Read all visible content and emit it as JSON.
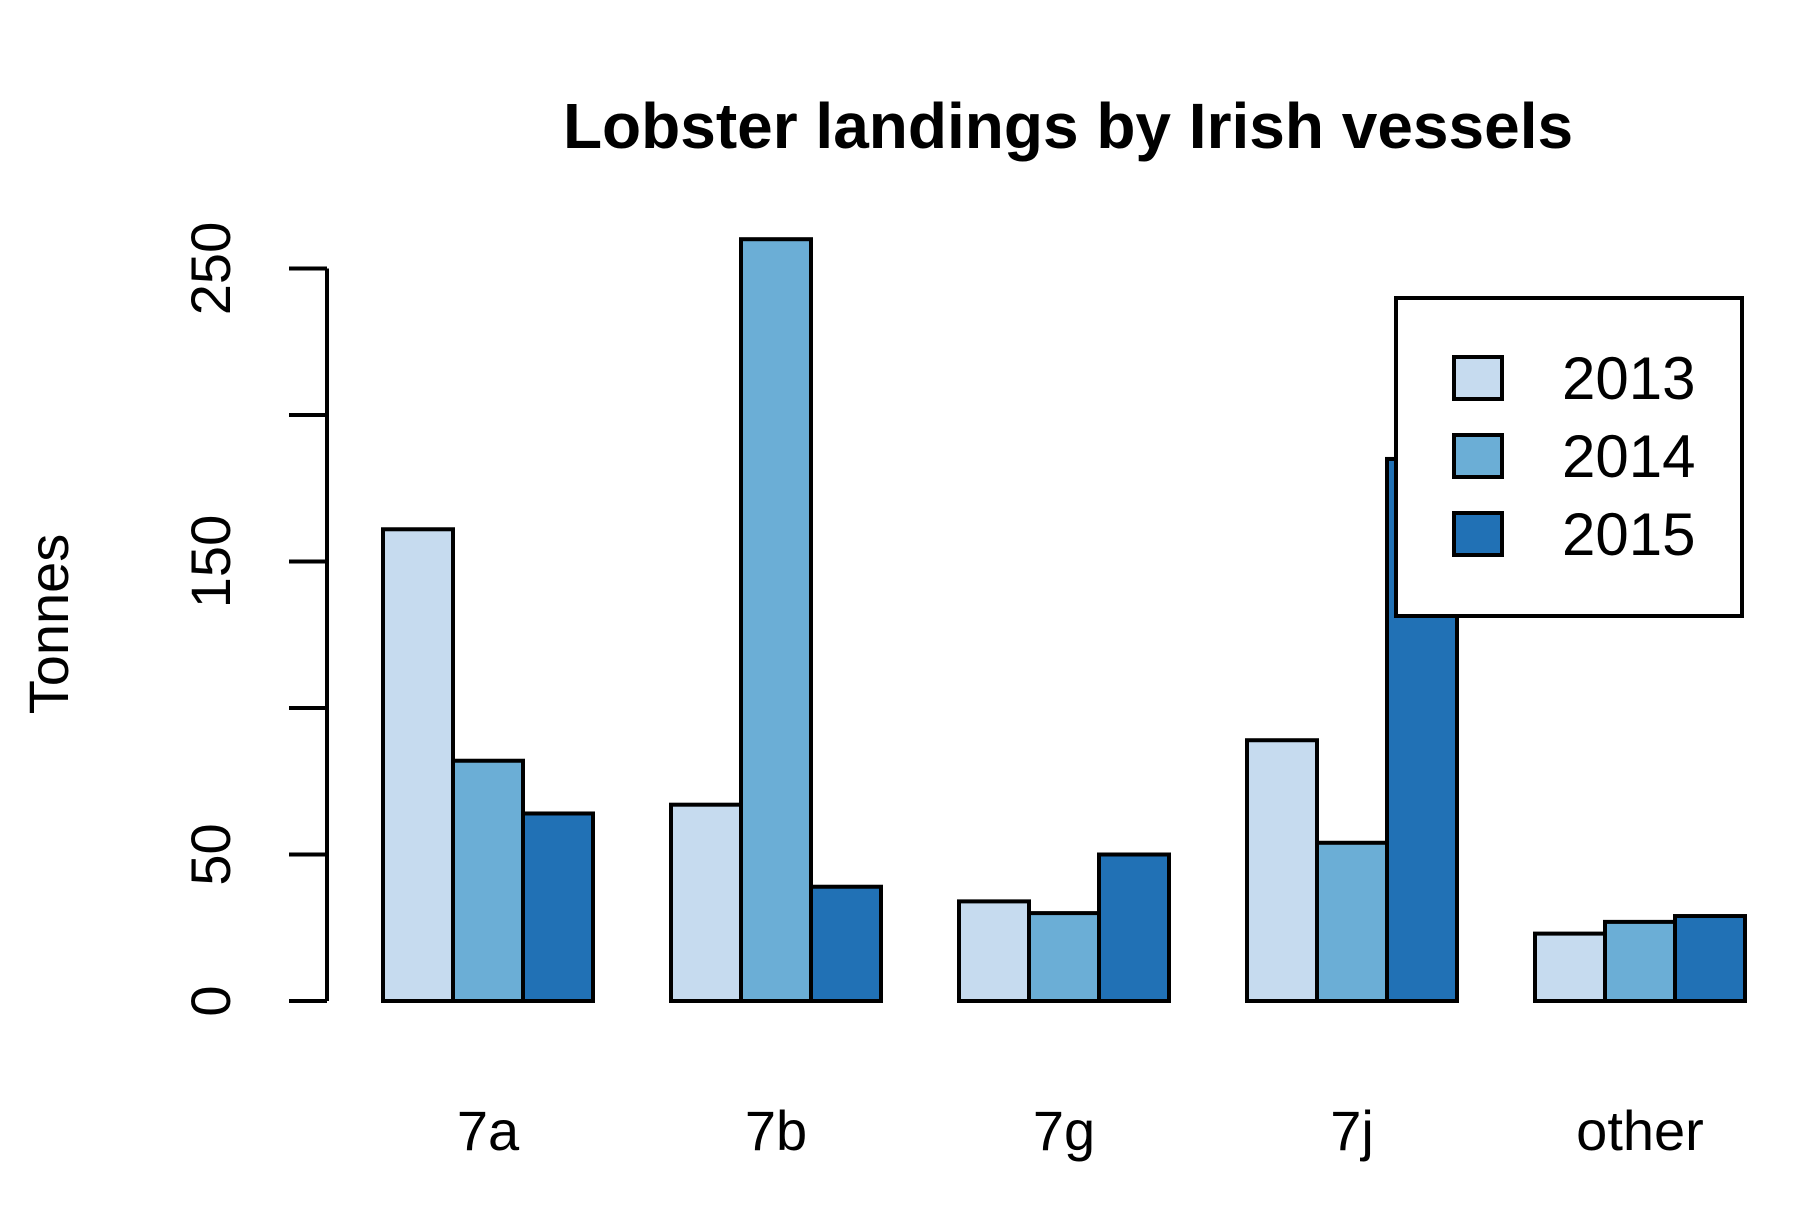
{
  "chart_data": {
    "type": "bar",
    "title": "Lobster landings by Irish vessels",
    "xlabel": "",
    "ylabel": "Tonnes",
    "categories": [
      "7a",
      "7b",
      "7g",
      "7j",
      "other"
    ],
    "series": [
      {
        "name": "2013",
        "color": "#c6dbef",
        "values": [
          161,
          67,
          34,
          89,
          23
        ]
      },
      {
        "name": "2014",
        "color": "#6baed6",
        "values": [
          82,
          260,
          30,
          54,
          27
        ]
      },
      {
        "name": "2015",
        "color": "#2171b5",
        "values": [
          64,
          39,
          50,
          185,
          29
        ]
      }
    ],
    "ylim": [
      0,
      250
    ],
    "yticks": [
      0,
      50,
      150,
      250
    ],
    "grid": false,
    "legend_position": "top-right"
  }
}
